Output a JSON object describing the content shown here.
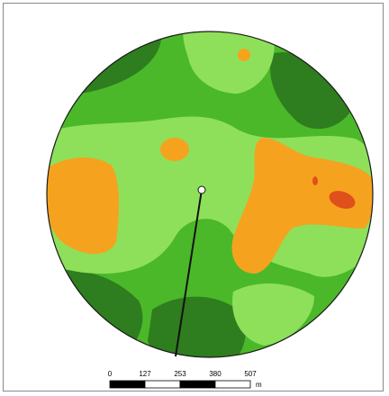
{
  "map": {
    "zone_colors": {
      "dark_green": "#2e7d1e",
      "mid_green": "#4bb82a",
      "light_green": "#8ee05a",
      "orange": "#f5a31f",
      "red": "#e0501a",
      "pivot_line": "#111111"
    }
  },
  "scale_bar": {
    "ticks": [
      "0",
      "127",
      "253",
      "380",
      "507"
    ],
    "unit": "m"
  }
}
